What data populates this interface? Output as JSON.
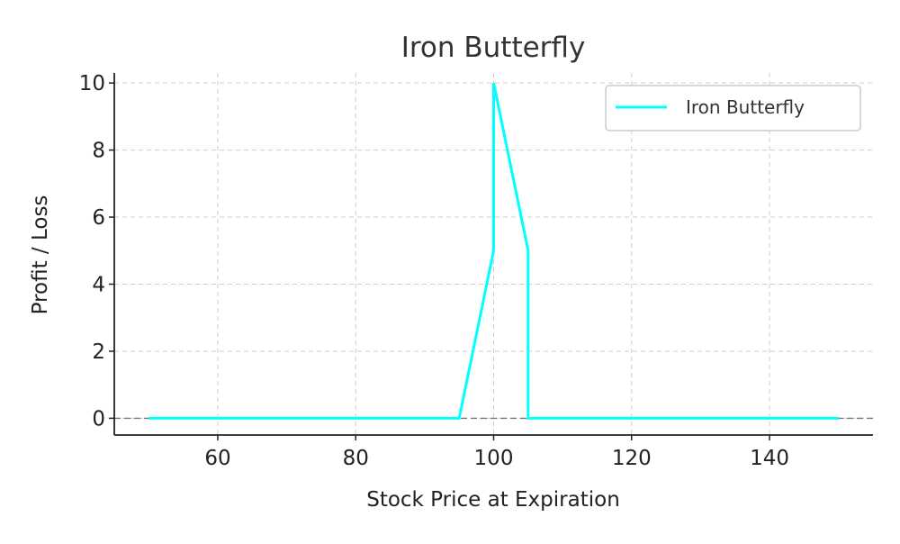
{
  "chart_data": {
    "type": "line",
    "title": "Iron Butterfly",
    "xlabel": "Stock Price at Expiration",
    "ylabel": "Profit / Loss",
    "xlim": [
      45,
      155
    ],
    "ylim": [
      -0.5,
      10.3
    ],
    "xticks": [
      60,
      80,
      100,
      120,
      140
    ],
    "yticks": [
      0,
      2,
      4,
      6,
      8,
      10
    ],
    "grid": true,
    "legend_position": "top-right",
    "zero_line": true,
    "series": [
      {
        "name": "Iron Butterfly",
        "color": "#00ffff",
        "x": [
          50,
          95,
          100,
          100,
          105,
          105,
          150
        ],
        "y": [
          0,
          0,
          5,
          10,
          5,
          0,
          0
        ]
      }
    ]
  }
}
